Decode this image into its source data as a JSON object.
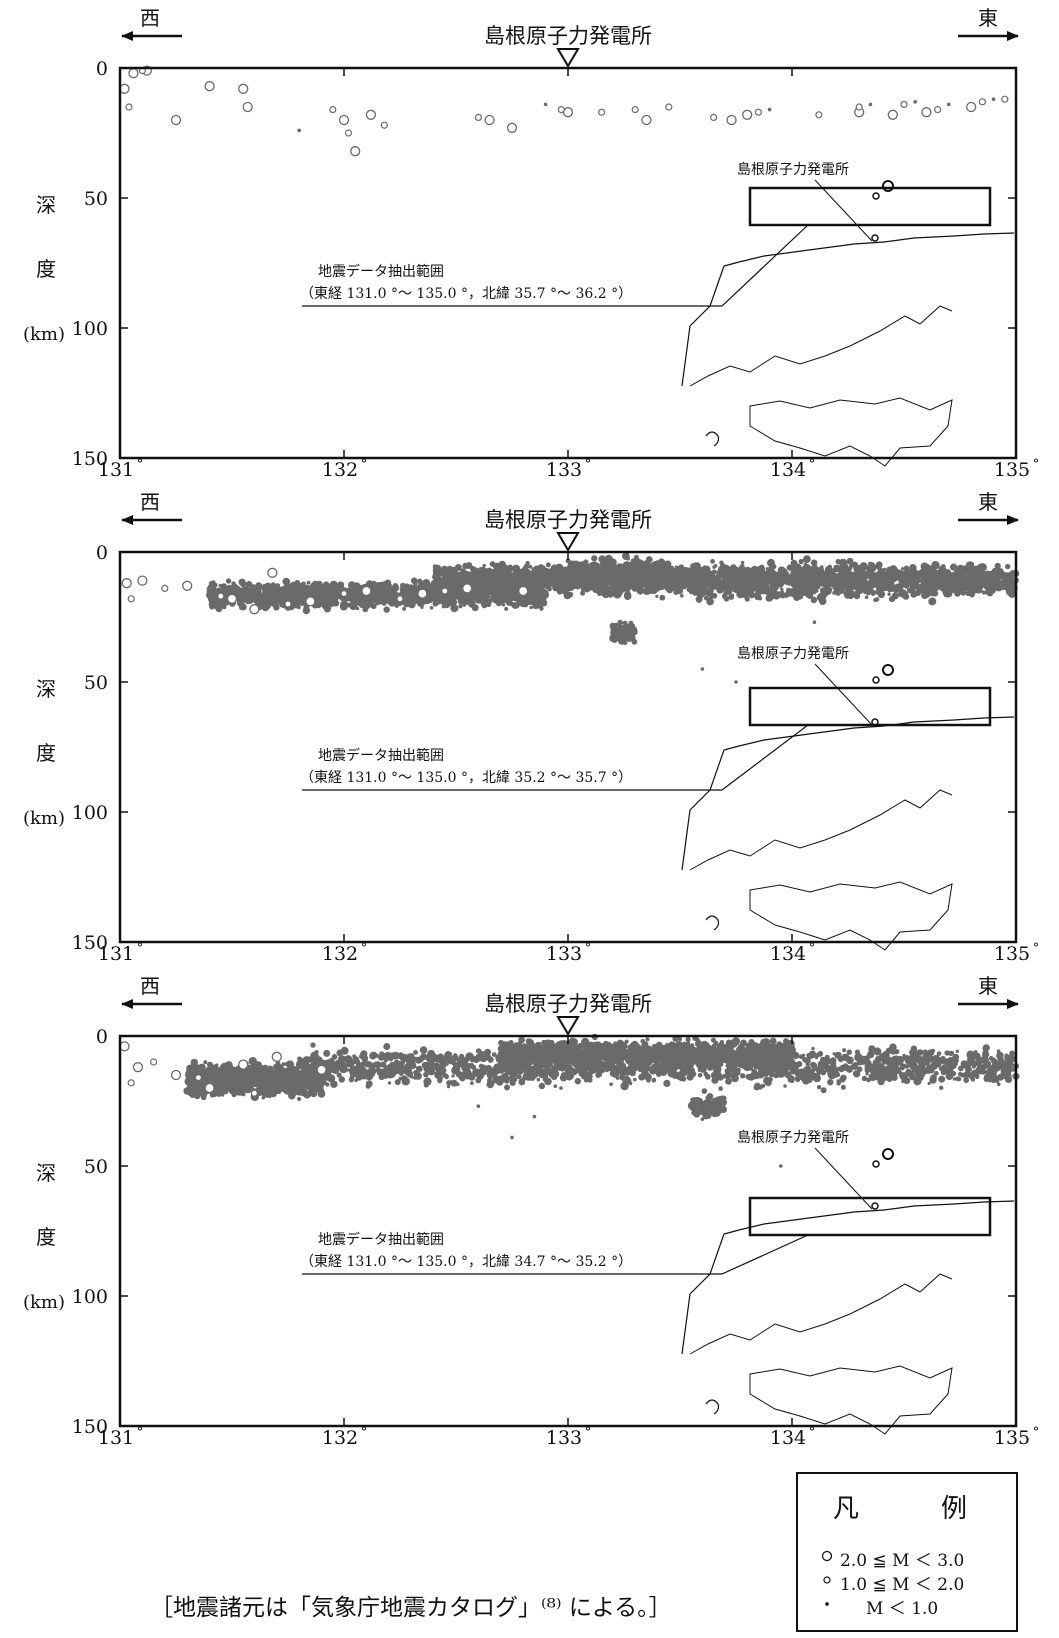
{
  "panels": [
    {
      "west_label": "西",
      "east_label": "東",
      "site_label": "島根原子力発電所",
      "depth_ticks": [
        "0",
        "50",
        "100",
        "150"
      ],
      "lon_ticks": [
        "131°",
        "132°",
        "133°",
        "134°",
        "135°"
      ],
      "ylabel": [
        "深",
        "度",
        "(km)"
      ],
      "inset_site_label": "島根原子力発電所",
      "inset_note_line1": "地震データ抽出範囲",
      "inset_note_line2": "（東経 131.0 °～ 135.0 °，北緯 35.7 °～ 36.2 °）"
    },
    {
      "west_label": "西",
      "east_label": "東",
      "site_label": "島根原子力発電所",
      "depth_ticks": [
        "0",
        "50",
        "100",
        "150"
      ],
      "lon_ticks": [
        "131°",
        "132°",
        "133°",
        "134°",
        "135°"
      ],
      "ylabel": [
        "深",
        "度",
        "(km)"
      ],
      "inset_site_label": "島根原子力発電所",
      "inset_note_line1": "地震データ抽出範囲",
      "inset_note_line2": "（東経 131.0 °～ 135.0 °，北緯 35.2 °～ 35.7 °）"
    },
    {
      "west_label": "西",
      "east_label": "東",
      "site_label": "島根原子力発電所",
      "depth_ticks": [
        "0",
        "50",
        "100",
        "150"
      ],
      "lon_ticks": [
        "131°",
        "132°",
        "133°",
        "134°",
        "135°"
      ],
      "ylabel": [
        "深",
        "度",
        "(km)"
      ],
      "inset_site_label": "島根原子力発電所",
      "inset_note_line1": "地震データ抽出範囲",
      "inset_note_line2": "（東経 131.0 °～ 135.0 °，北緯 34.7 °～ 35.2 °）"
    }
  ],
  "legend": {
    "title": "凡　例",
    "items": [
      "2.0 ≦ M ＜ 3.0",
      "1.0 ≦ M ＜ 2.0",
      "M ＜ 1.0"
    ]
  },
  "source_note": "［地震諸元は「気象庁地震カタログ」⁽⁸⁾ による。］",
  "colors": {
    "quake": "#6a6a6a",
    "axis": "#111111"
  },
  "chart_data": [
    {
      "type": "scatter",
      "title": "",
      "xlabel": "",
      "ylabel": "深度 (km)",
      "xlim": [
        131,
        135
      ],
      "ylim": [
        0,
        150
      ],
      "y_inverted": true,
      "site_longitude": 133.0,
      "extraction_range": {
        "lon": [
          131.0,
          135.0
        ],
        "lat": [
          35.7,
          36.2
        ]
      },
      "series": [
        {
          "name": "2.0 ≦ M ＜ 3.0",
          "marker": "large-circle",
          "x": [
            131.02,
            131.06,
            131.12,
            131.25,
            131.4,
            131.55,
            131.57,
            132.0,
            132.05,
            132.12,
            132.65,
            132.75,
            133.0,
            133.35,
            133.73,
            133.8,
            134.3,
            134.45,
            134.6,
            134.8
          ],
          "y": [
            8,
            2,
            1,
            20,
            7,
            8,
            15,
            20,
            32,
            18,
            20,
            23,
            17,
            20,
            20,
            18,
            17,
            18,
            17,
            15
          ]
        },
        {
          "name": "1.0 ≦ M ＜ 2.0",
          "marker": "small-circle",
          "x": [
            131.04,
            131.1,
            131.95,
            132.02,
            132.18,
            132.6,
            132.97,
            133.15,
            133.3,
            133.45,
            133.65,
            133.85,
            134.12,
            134.3,
            134.5,
            134.65,
            134.85,
            134.95
          ],
          "y": [
            15,
            1,
            16,
            25,
            22,
            19,
            16,
            17,
            16,
            15,
            19,
            17,
            18,
            15,
            14,
            16,
            13,
            12
          ]
        },
        {
          "name": "M ＜ 1.0",
          "marker": "dot",
          "x": [
            131.8,
            132.9,
            133.9,
            134.35,
            134.55,
            134.7,
            134.9
          ],
          "y": [
            24,
            14,
            16,
            14,
            13,
            14,
            12
          ]
        }
      ]
    },
    {
      "type": "scatter",
      "title": "",
      "xlabel": "",
      "ylabel": "深度 (km)",
      "xlim": [
        131,
        135
      ],
      "ylim": [
        0,
        150
      ],
      "y_inverted": true,
      "site_longitude": 133.0,
      "extraction_range": {
        "lon": [
          131.0,
          135.0
        ],
        "lat": [
          35.2,
          35.7
        ]
      },
      "series": [
        {
          "name": "2.0 ≦ M ＜ 3.0",
          "marker": "large-circle",
          "x": [
            131.03,
            131.1,
            131.3,
            131.5,
            131.6,
            131.68,
            131.85,
            132.1,
            132.35,
            132.55,
            132.8
          ],
          "y": [
            12,
            11,
            13,
            18,
            22,
            8,
            19,
            15,
            16,
            14,
            15
          ]
        },
        {
          "name": "1.0 ≦ M ＜ 2.0",
          "marker": "small-circle",
          "x": [
            131.05,
            131.2,
            131.45,
            131.75,
            132.0,
            132.25,
            132.45
          ],
          "y": [
            18,
            14,
            17,
            20,
            16,
            18,
            15
          ]
        },
        {
          "name": "M ＜ 1.0",
          "marker": "dot",
          "x": [
            133.25,
            133.75,
            134.1,
            133.6
          ],
          "y": [
            30,
            50,
            27,
            45
          ]
        }
      ],
      "dense_clusters": [
        {
          "lon": [
            131.4,
            132.9
          ],
          "depth": [
            10,
            23
          ]
        },
        {
          "lon": [
            132.4,
            133.6
          ],
          "depth": [
            3,
            18
          ]
        },
        {
          "lon": [
            133.0,
            133.45
          ],
          "depth": [
            1,
            16
          ]
        },
        {
          "lon": [
            133.55,
            135.0
          ],
          "depth": [
            2,
            20
          ]
        },
        {
          "lon": [
            133.2,
            133.3
          ],
          "depth": [
            25,
            37
          ]
        }
      ]
    },
    {
      "type": "scatter",
      "title": "",
      "xlabel": "",
      "ylabel": "深度 (km)",
      "xlim": [
        131,
        135
      ],
      "ylim": [
        0,
        150
      ],
      "y_inverted": true,
      "site_longitude": 133.0,
      "extraction_range": {
        "lon": [
          131.0,
          135.0
        ],
        "lat": [
          34.7,
          35.2
        ]
      },
      "series": [
        {
          "name": "2.0 ≦ M ＜ 3.0",
          "marker": "large-circle",
          "x": [
            131.02,
            131.08,
            131.25,
            131.4,
            131.55,
            131.7,
            131.9
          ],
          "y": [
            4,
            12,
            15,
            20,
            11,
            8,
            13
          ]
        },
        {
          "name": "1.0 ≦ M ＜ 2.0",
          "marker": "small-circle",
          "x": [
            131.05,
            131.15,
            131.35,
            131.6
          ],
          "y": [
            18,
            10,
            16,
            22
          ]
        },
        {
          "name": "M ＜ 1.0",
          "marker": "dot",
          "x": [
            132.6,
            132.75,
            132.85,
            133.6,
            133.95
          ],
          "y": [
            27,
            39,
            31,
            32,
            50
          ]
        }
      ],
      "dense_clusters": [
        {
          "lon": [
            131.3,
            131.9
          ],
          "depth": [
            8,
            26
          ]
        },
        {
          "lon": [
            131.8,
            135.0
          ],
          "depth": [
            2,
            22
          ]
        },
        {
          "lon": [
            132.7,
            134.0
          ],
          "depth": [
            0,
            14
          ]
        },
        {
          "lon": [
            133.55,
            133.7
          ],
          "depth": [
            22,
            32
          ]
        }
      ]
    }
  ]
}
